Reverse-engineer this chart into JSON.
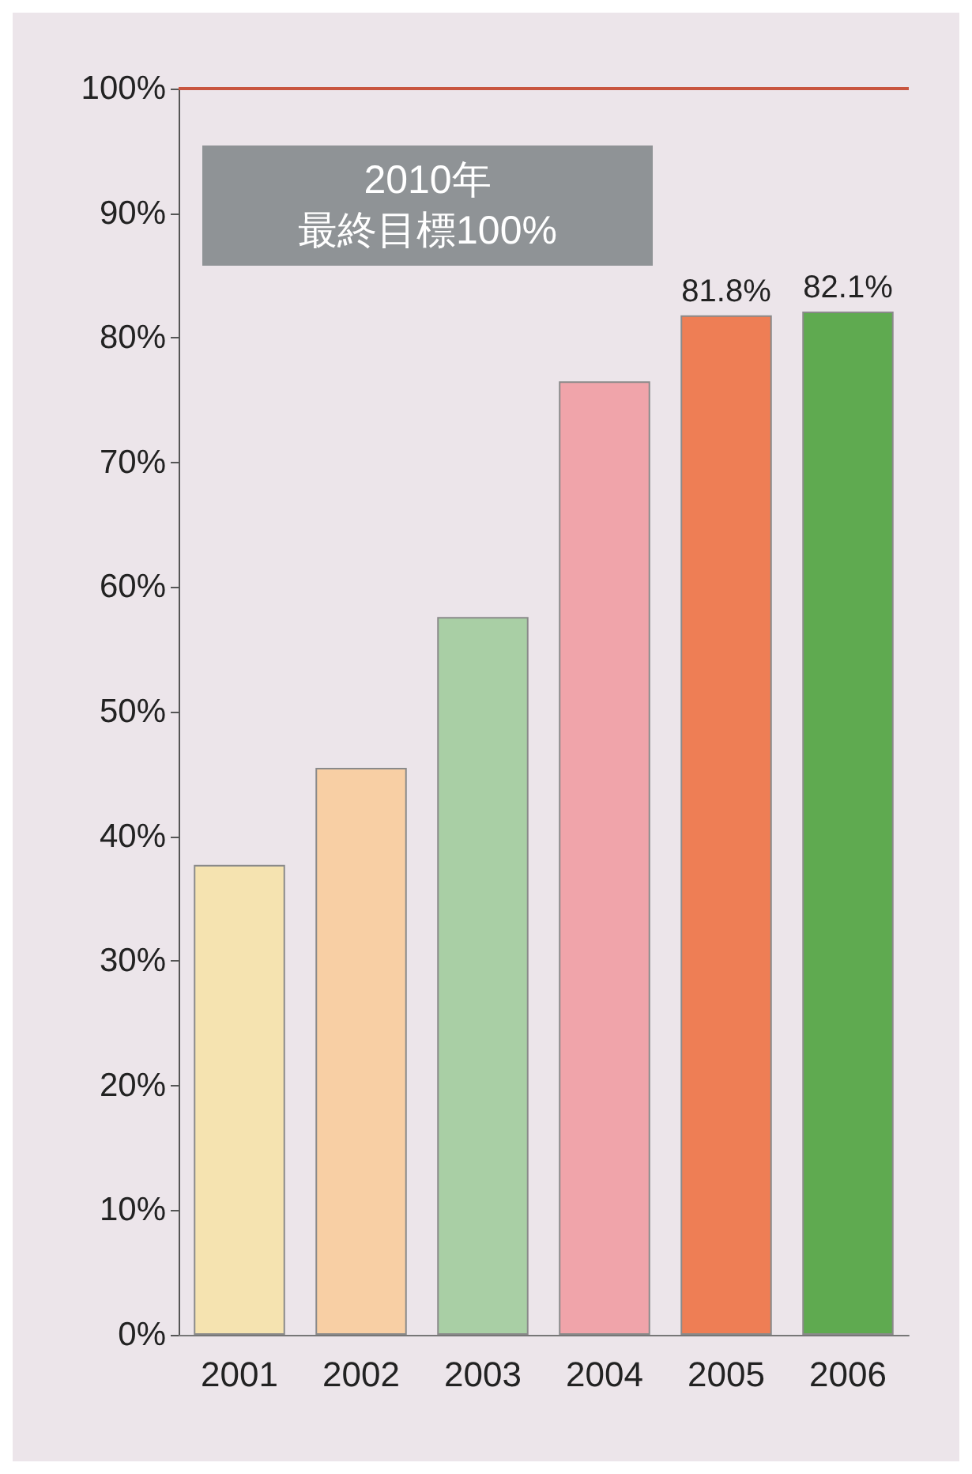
{
  "chart_data": {
    "type": "bar",
    "categories": [
      "2001",
      "2002",
      "2003",
      "2004",
      "2005",
      "2006"
    ],
    "values": [
      37.7,
      45.5,
      57.6,
      76.5,
      81.8,
      82.1
    ],
    "colors": [
      "#f5e3b0",
      "#f8cfa4",
      "#a9cfa5",
      "#f0a4aa",
      "#ee7e55",
      "#5faa50"
    ],
    "value_labels": [
      null,
      null,
      null,
      null,
      "81.8%",
      "82.1%"
    ],
    "ylim": [
      0,
      100
    ],
    "yticks": [
      {
        "value": 0,
        "label": "0%"
      },
      {
        "value": 10,
        "label": "10%"
      },
      {
        "value": 20,
        "label": "20%"
      },
      {
        "value": 30,
        "label": "30%"
      },
      {
        "value": 40,
        "label": "40%"
      },
      {
        "value": 50,
        "label": "50%"
      },
      {
        "value": 60,
        "label": "60%"
      },
      {
        "value": 70,
        "label": "70%"
      },
      {
        "value": 80,
        "label": "80%"
      },
      {
        "value": 90,
        "label": "90%"
      },
      {
        "value": 100,
        "label": "100%"
      }
    ],
    "ref_lines": [
      {
        "axis": "y",
        "value": 100,
        "color": "#c8553f"
      }
    ],
    "annotations": [
      "2010年",
      "最終目標100%"
    ],
    "grid": false
  }
}
